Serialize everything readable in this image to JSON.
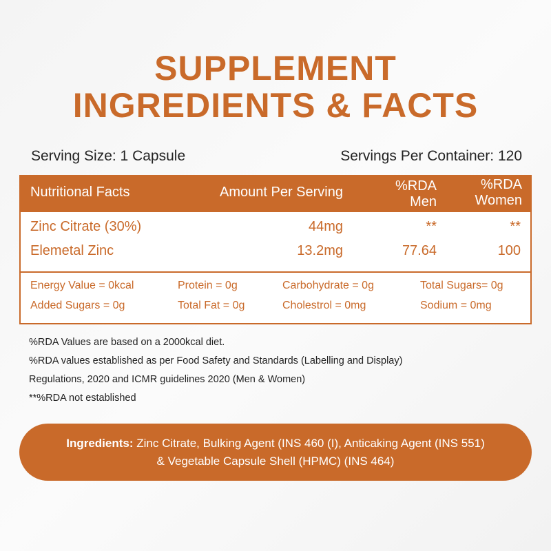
{
  "title": {
    "line1": "SUPPLEMENT",
    "line2": "INGREDIENTS & FACTS"
  },
  "serving": {
    "size": "Serving Size: 1 Capsule",
    "per_container": "Servings Per Container: 120"
  },
  "table": {
    "headers": {
      "facts": "Nutritional Facts",
      "amount": "Amount Per Serving",
      "rda_men_1": "%RDA",
      "rda_men_2": "Men",
      "rda_women_1": "%RDA",
      "rda_women_2": "Women"
    },
    "rows": [
      {
        "name": "Zinc Citrate (30%)",
        "amount": "44mg",
        "men": "**",
        "women": "**"
      },
      {
        "name": "Elemetal Zinc",
        "amount": "13.2mg",
        "men": "77.64",
        "women": "100"
      }
    ],
    "nutrients": [
      "Energy Value = 0kcal",
      "Protein = 0g",
      "Carbohydrate = 0g",
      "Total Sugars= 0g",
      "Added Sugars = 0g",
      "Total Fat = 0g",
      "Cholestrol = 0mg",
      "Sodium = 0mg"
    ]
  },
  "notes": [
    "%RDA Values are based on a 2000kcal diet.",
    "%RDA values established as per Food Safety and Standards (Labelling and Display)",
    "Regulations, 2020 and ICMR guidelines 2020 (Men & Women)",
    "**%RDA not established"
  ],
  "ingredients": {
    "label": "Ingredients:",
    "line1": " Zinc Citrate, Bulking Agent (INS 460 (I), Anticaking Agent (INS 551)",
    "line2": "& Vegetable Capsule Shell (HPMC) (INS 464)"
  },
  "colors": {
    "accent": "#c96a2a"
  }
}
